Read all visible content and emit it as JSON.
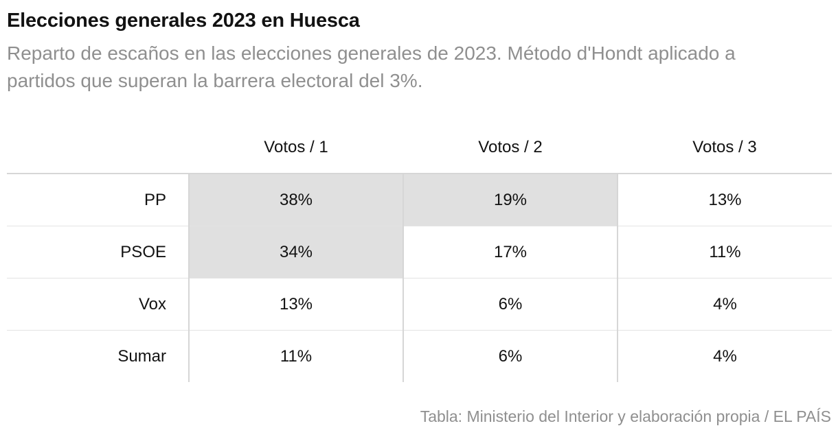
{
  "header": {
    "title": "Elecciones generales 2023 en Huesca",
    "subtitle": "Reparto de escaños en las elecciones generales de 2023. Método d'Hondt aplicado a partidos que superan la barrera electoral del 3%."
  },
  "chart_data": {
    "type": "table",
    "title": "Elecciones generales 2023 en Huesca",
    "subtitle": "Reparto de escaños en las elecciones generales de 2023. Método d'Hondt aplicado a partidos que superan la barrera electoral del 3%.",
    "columns": [
      "Votos / 1",
      "Votos / 2",
      "Votos / 3"
    ],
    "rows": [
      {
        "party": "PP",
        "values": [
          "38%",
          "19%",
          "13%"
        ],
        "seats": [
          true,
          true,
          false
        ]
      },
      {
        "party": "PSOE",
        "values": [
          "34%",
          "17%",
          "11%"
        ],
        "seats": [
          true,
          false,
          false
        ]
      },
      {
        "party": "Vox",
        "values": [
          "13%",
          "6%",
          "4%"
        ],
        "seats": [
          false,
          false,
          false
        ]
      },
      {
        "party": "Sumar",
        "values": [
          "11%",
          "6%",
          "4%"
        ],
        "seats": [
          false,
          false,
          false
        ]
      }
    ],
    "highlight_color": "#e0e0e0",
    "source": "Tabla: Ministerio del Interior y elaboración propia / EL PAÍS"
  },
  "colors": {
    "text": "#121212",
    "muted": "#8f8f8f",
    "seat_fill": "#e0e0e0",
    "rule": "#d6d6d6"
  }
}
